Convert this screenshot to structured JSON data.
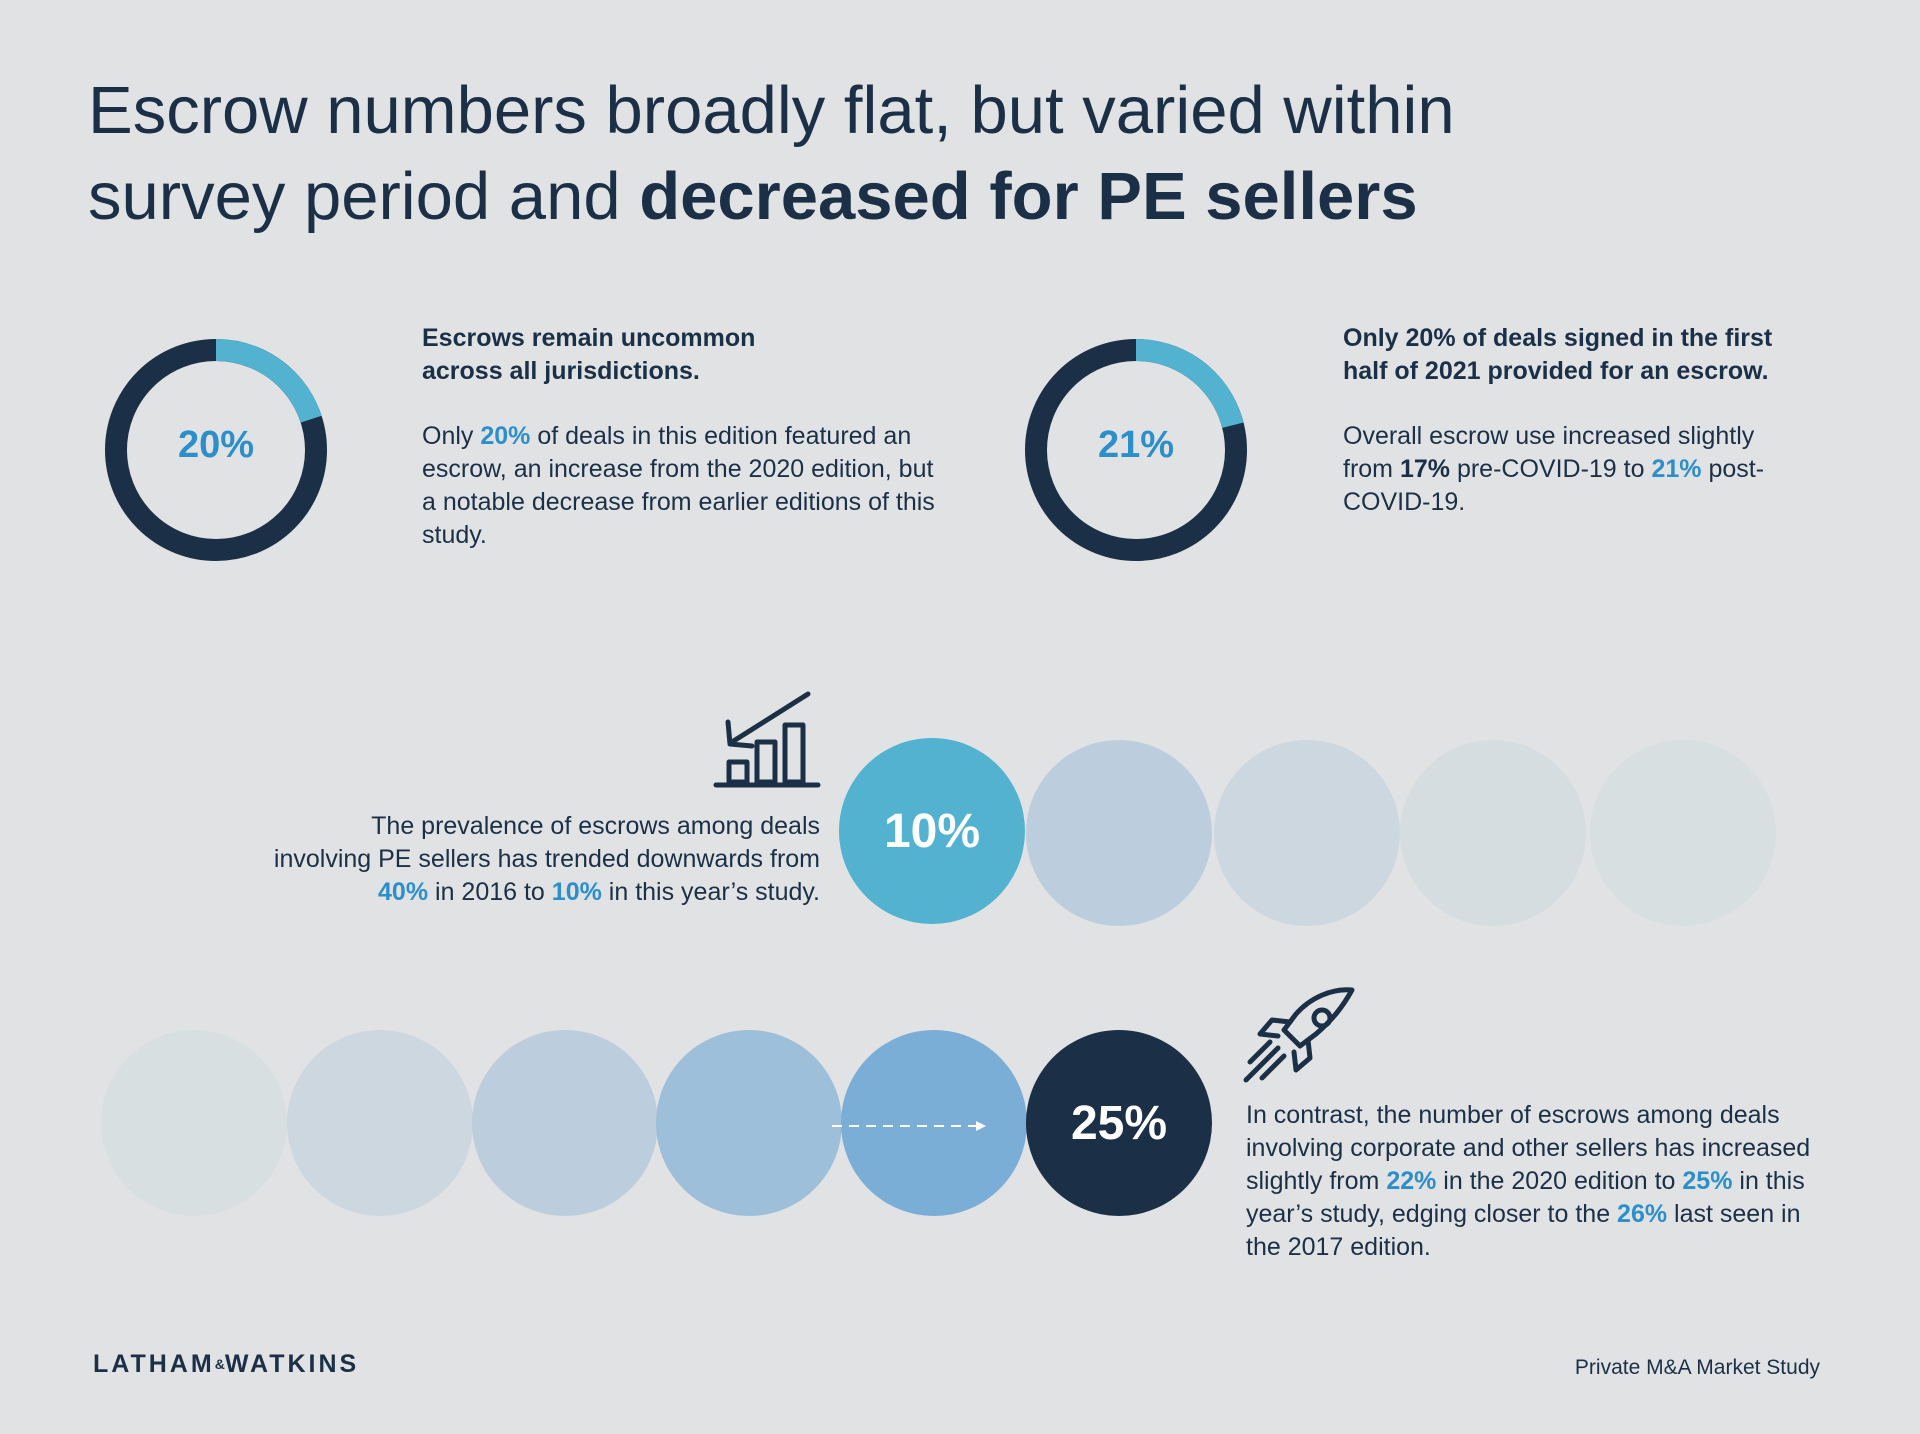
{
  "title": {
    "line1": "Escrow numbers broadly flat, but varied within",
    "line2_regular": "survey period and ",
    "line2_bold": "decreased for PE sellers"
  },
  "stat1": {
    "donut_value": "20%",
    "donut_fraction": 0.2,
    "heading_line1": "Escrows remain uncommon",
    "heading_line2": "across all jurisdictions.",
    "body": {
      "p1": "Only ",
      "h1": "20%",
      "p2": " of deals in this edition featured an escrow, an increase from the 2020 edition, but a notable decrease from earlier editions of this study."
    }
  },
  "stat2": {
    "donut_value": "21%",
    "donut_fraction": 0.21,
    "heading_line1": "Only 20% of deals signed in the first",
    "heading_line2": "half of 2021 provided for an escrow.",
    "body": {
      "p1": "Overall escrow use increased slightly from ",
      "h1": "17%",
      "p2": " pre-COVID-19 to ",
      "h2": "21%",
      "p3": " post-COVID-19."
    }
  },
  "pe_sellers": {
    "icon": "declining-bar-chart-icon",
    "circle_value": "10%",
    "text": {
      "p1": "The prevalence of escrows among deals involving PE sellers has trended downwards from ",
      "h1": "40%",
      "p2": " in 2016 to ",
      "h2": "10%",
      "p3": " in this year’s study."
    }
  },
  "corporate_sellers": {
    "icon": "rocket-icon",
    "circle_value": "25%",
    "text": {
      "p1": "In contrast, the number of escrows among deals involving corporate and other sellers has increased slightly from ",
      "h1": "22%",
      "p2": " in the 2020 edition to ",
      "h2": "25%",
      "p3": " in this year’s study, edging closer to the ",
      "h3": "26%",
      "p4": " last seen in the 2017 edition."
    }
  },
  "footer": {
    "logo_part1": "LATHAM",
    "logo_amp": "&",
    "logo_part2": "WATKINS",
    "study": "Private M&A Market Study"
  },
  "colors": {
    "background": "#e1e2e4",
    "navy": "#1b3046",
    "accent_blue": "#2c8fc9",
    "donut_light": "#52b2d0",
    "pe_circle": "#52b2d0",
    "corporate_circle": "#1b3046"
  }
}
